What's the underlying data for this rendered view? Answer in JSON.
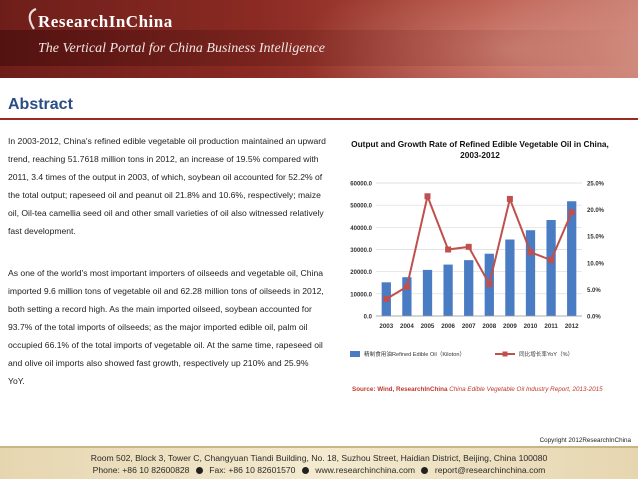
{
  "header": {
    "brand": "ResearchInChina",
    "tagline": "The Vertical Portal for China Business Intelligence"
  },
  "page_title": "Abstract",
  "paragraphs": [
    "In 2003-2012, China's refined edible vegetable oil production maintained an upward trend, reaching 51.7618 million tons in 2012, an increase of 19.5% compared with 2011, 3.4 times of the output in 2003, of which, soybean oil accounted for 52.2% of the total output; rapeseed oil and peanut oil 21.8% and 10.6%, respectively; maize oil, Oil-tea camellia seed oil and other small varieties of oil also witnessed relatively fast development.",
    "As one of the world's most important importers of oilseeds and vegetable oil, China imported 9.6 million tons of vegetable oil and 62.28 million tons of oilseeds in 2012, both setting a record high. As the main imported oilseed, soybean accounted for 93.7% of the total imports of oilseeds; as the major imported edible oil, palm oil occupied 66.1% of the total imports of vegetable oil. At the same time, rapeseed oil and olive oil imports also showed fast growth, respectively up 210% and 25.9% YoY."
  ],
  "chart_data": {
    "type": "bar",
    "title": "Output and Growth Rate of Refined Edible Vegetable Oil in China, 2003-2012",
    "categories": [
      "2003",
      "2004",
      "2005",
      "2006",
      "2007",
      "2008",
      "2009",
      "2010",
      "2011",
      "2012"
    ],
    "series": [
      {
        "name": "精制食用油Refined Edible Oil（Kiloton）",
        "type": "bar",
        "axis": "left",
        "color": "#4a7cc3",
        "values": [
          15200,
          17500,
          20800,
          23200,
          25200,
          28100,
          34500,
          38700,
          43300,
          51762
        ]
      },
      {
        "name": "同比增长率YoY（%）",
        "type": "line",
        "axis": "right",
        "color": "#c0504d",
        "values": [
          3.2,
          5.5,
          22.5,
          12.5,
          13.0,
          6.0,
          22.0,
          12.0,
          10.5,
          19.5
        ]
      }
    ],
    "left_axis": {
      "ylim": [
        0,
        60000
      ],
      "ticks": [
        "0.0",
        "10000.0",
        "20000.0",
        "30000.0",
        "40000.0",
        "50000.0",
        "60000.0"
      ]
    },
    "right_axis": {
      "ylim": [
        0,
        25
      ],
      "ticks": [
        "0.0%",
        "5.0%",
        "10.0%",
        "15.0%",
        "20.0%",
        "25.0%"
      ]
    },
    "grid": true,
    "legend": "bottom"
  },
  "source": {
    "label": "Source: Wind, ResearchInChina",
    "text": "China Edible Vegetable Oil Industry Report, 2013-2015"
  },
  "copyright": "Copyright 2012ResearchInChina",
  "footer": {
    "address": "Room 502, Block 3, Tower C, Changyuan Tiandi Building, No. 18, Suzhou Street, Haidian District, Beijing, China 100080",
    "phone": "Phone: +86 10 82600828",
    "fax": "Fax: +86 10 82601570",
    "web": "www.researchinchina.com",
    "email": "report@researchinchina.com"
  },
  "colors": {
    "banner": "#8a2a23",
    "title": "#2a4d86",
    "rule": "#9a2b23",
    "bar": "#4a7cc3",
    "line": "#c0504d",
    "footer": "#f4ead0"
  }
}
